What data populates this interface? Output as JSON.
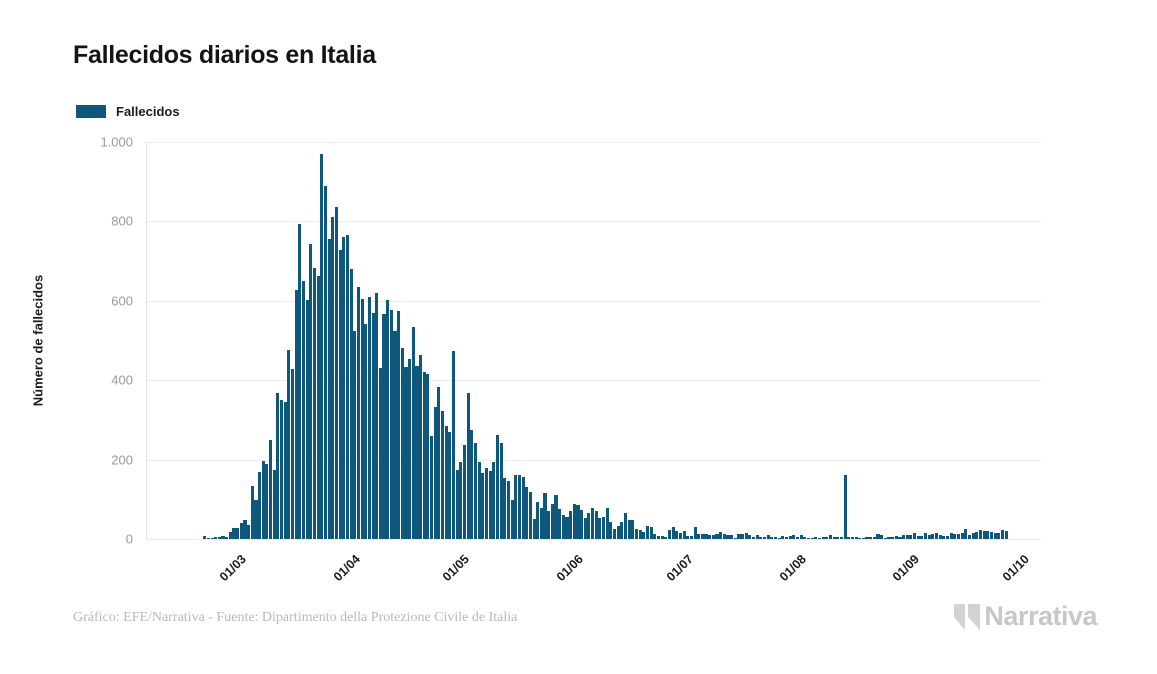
{
  "title": "Fallecidos diarios en Italia",
  "legend": {
    "label": "Fallecidos",
    "color": "#0e587e"
  },
  "y_axis": {
    "title": "Número de fallecidos"
  },
  "footer": {
    "credit": "Gráfico: EFE/Narrativa - Fuente: Dipartimento della Protezione Civile de Italia"
  },
  "logo": {
    "text": "Narrativa"
  },
  "chart_data": {
    "type": "bar",
    "title": "Fallecidos diarios en Italia",
    "xlabel": "",
    "ylabel": "Número de fallecidos",
    "ylim": [
      0,
      1000
    ],
    "grid": true,
    "legend_position": "top-left",
    "bar_color": "#0e587e",
    "series_name": "Fallecidos",
    "cadence": "daily",
    "start_date": "2020-02-24",
    "y_ticks": [
      {
        "value": 0,
        "label": "0"
      },
      {
        "value": 200,
        "label": "200"
      },
      {
        "value": 400,
        "label": "400"
      },
      {
        "value": 600,
        "label": "600"
      },
      {
        "value": 800,
        "label": "800"
      },
      {
        "value": 1000,
        "label": "1.000"
      }
    ],
    "x_ticks": [
      {
        "date": "2020-03-01",
        "label": "01/03"
      },
      {
        "date": "2020-04-01",
        "label": "01/04"
      },
      {
        "date": "2020-05-01",
        "label": "01/05"
      },
      {
        "date": "2020-06-01",
        "label": "01/06"
      },
      {
        "date": "2020-07-01",
        "label": "01/07"
      },
      {
        "date": "2020-08-01",
        "label": "01/08"
      },
      {
        "date": "2020-09-01",
        "label": "01/09"
      },
      {
        "date": "2020-10-01",
        "label": "01/10"
      }
    ],
    "values": [
      7,
      3,
      2,
      5,
      4,
      8,
      5,
      18,
      27,
      28,
      41,
      49,
      36,
      133,
      97,
      168,
      196,
      189,
      250,
      175,
      368,
      349,
      345,
      475,
      427,
      627,
      793,
      651,
      601,
      743,
      683,
      662,
      969,
      889,
      756,
      812,
      837,
      727,
      760,
      766,
      681,
      525,
      636,
      604,
      542,
      610,
      570,
      619,
      431,
      566,
      602,
      578,
      525,
      575,
      482,
      433,
      454,
      534,
      437,
      464,
      420,
      415,
      260,
      333,
      382,
      323,
      285,
      269,
      474,
      174,
      195,
      236,
      369,
      274,
      243,
      194,
      165,
      179,
      172,
      195,
      262,
      242,
      153,
      145,
      99,
      162,
      161,
      156,
      130,
      119,
      50,
      92,
      78,
      117,
      70,
      87,
      111,
      75,
      60,
      55,
      71,
      88,
      85,
      72,
      53,
      65,
      79,
      71,
      53,
      56,
      78,
      44,
      26,
      34,
      43,
      66,
      47,
      49,
      24,
      23,
      18,
      34,
      30,
      12,
      8,
      8,
      6,
      23,
      30,
      20,
      15,
      21,
      8,
      8,
      30,
      12,
      13,
      12,
      9,
      9,
      13,
      17,
      13,
      11,
      11,
      3,
      13,
      13,
      15,
      10,
      6,
      10,
      5,
      5,
      11,
      5,
      6,
      3,
      8,
      5,
      8,
      9,
      6,
      10,
      6,
      3,
      2,
      6,
      2,
      6,
      6,
      9,
      6,
      4,
      4,
      162,
      5,
      6,
      6,
      3,
      3,
      4,
      4,
      6,
      13,
      9,
      3,
      4,
      4,
      8,
      6,
      10,
      10,
      9,
      16,
      8,
      8,
      14,
      10,
      12,
      16,
      10,
      7,
      8,
      14,
      12,
      13,
      14,
      24,
      11,
      14,
      17,
      23,
      21,
      20,
      17,
      16,
      16,
      23,
      19
    ]
  }
}
